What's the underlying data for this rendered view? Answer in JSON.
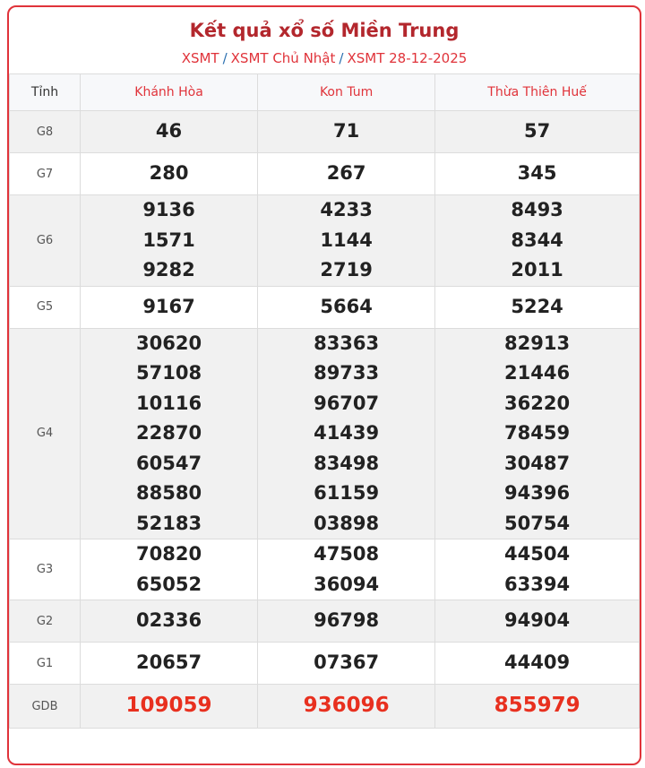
{
  "title": "Kết quả xổ số Miền Trung",
  "breadcrumb": [
    "XSMT",
    "XSMT Chủ Nhật",
    "XSMT 28-12-2025"
  ],
  "breadcrumb_separator": "/",
  "table": {
    "header_label": "Tỉnh",
    "provinces": [
      "Khánh Hòa",
      "Kon Tum",
      "Thừa Thiên Huế"
    ],
    "rows": [
      {
        "prize": "G8",
        "values": [
          [
            "46"
          ],
          [
            "71"
          ],
          [
            "57"
          ]
        ]
      },
      {
        "prize": "G7",
        "values": [
          [
            "280"
          ],
          [
            "267"
          ],
          [
            "345"
          ]
        ]
      },
      {
        "prize": "G6",
        "values": [
          [
            "9136",
            "1571",
            "9282"
          ],
          [
            "4233",
            "1144",
            "2719"
          ],
          [
            "8493",
            "8344",
            "2011"
          ]
        ]
      },
      {
        "prize": "G5",
        "values": [
          [
            "9167"
          ],
          [
            "5664"
          ],
          [
            "5224"
          ]
        ]
      },
      {
        "prize": "G4",
        "values": [
          [
            "30620",
            "57108",
            "10116",
            "22870",
            "60547",
            "88580",
            "52183"
          ],
          [
            "83363",
            "89733",
            "96707",
            "41439",
            "83498",
            "61159",
            "03898"
          ],
          [
            "82913",
            "21446",
            "36220",
            "78459",
            "30487",
            "94396",
            "50754"
          ]
        ]
      },
      {
        "prize": "G3",
        "values": [
          [
            "70820",
            "65052"
          ],
          [
            "47508",
            "36094"
          ],
          [
            "44504",
            "63394"
          ]
        ]
      },
      {
        "prize": "G2",
        "values": [
          [
            "02336"
          ],
          [
            "96798"
          ],
          [
            "94904"
          ]
        ]
      },
      {
        "prize": "G1",
        "values": [
          [
            "20657"
          ],
          [
            "07367"
          ],
          [
            "44409"
          ]
        ]
      },
      {
        "prize": "GDB",
        "values": [
          [
            "109059"
          ],
          [
            "936096"
          ],
          [
            "855979"
          ]
        ]
      }
    ]
  },
  "colors": {
    "accent": "#e0333a",
    "title": "#b3272d",
    "special_prize": "#e8301f"
  }
}
